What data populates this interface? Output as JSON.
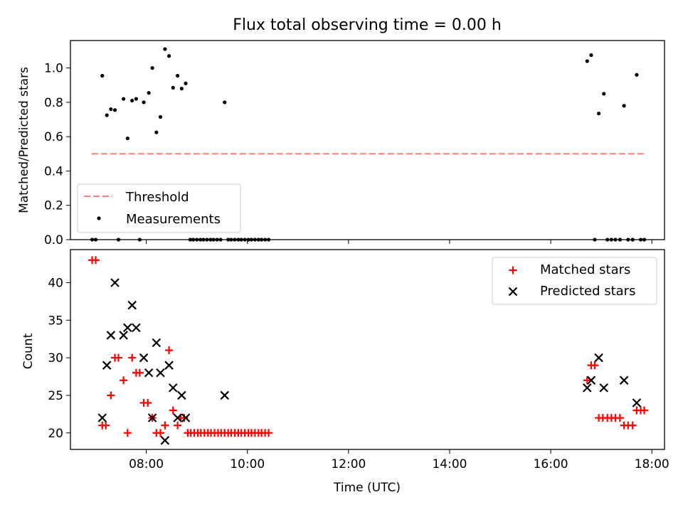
{
  "title": "Flux total observing time = 0.00 h",
  "colors": {
    "threshold": "#ff7f7f",
    "measurement": "#000000",
    "matched": "#ff0000",
    "predicted": "#000000"
  },
  "chart_data": [
    {
      "type": "scatter",
      "ylabel": "Matched/Predicted stars",
      "xlim": [
        6.5,
        18.25
      ],
      "ylim": [
        0,
        1.16
      ],
      "yticks": [
        "0.0",
        "0.2",
        "0.4",
        "0.6",
        "0.8",
        "1.0"
      ],
      "ytick_values": [
        0,
        0.2,
        0.4,
        0.6,
        0.8,
        1.0
      ],
      "grid": false,
      "legend_position": "lower-left",
      "threshold": {
        "name": "Threshold",
        "y": 0.5,
        "x_range": [
          6.92,
          17.87
        ]
      },
      "series": [
        {
          "name": "Measurements",
          "points": [
            [
              6.93,
              0
            ],
            [
              7.0,
              0
            ],
            [
              7.13,
              0.955
            ],
            [
              7.22,
              0.725
            ],
            [
              7.3,
              0.76
            ],
            [
              7.38,
              0.755
            ],
            [
              7.45,
              0
            ],
            [
              7.55,
              0.82
            ],
            [
              7.63,
              0.59
            ],
            [
              7.72,
              0.81
            ],
            [
              7.8,
              0.82
            ],
            [
              7.87,
              0
            ],
            [
              7.95,
              0.8
            ],
            [
              8.05,
              0.855
            ],
            [
              8.12,
              1.0
            ],
            [
              8.2,
              0.625
            ],
            [
              8.28,
              0.715
            ],
            [
              8.37,
              1.11
            ],
            [
              8.45,
              1.07
            ],
            [
              8.53,
              0.885
            ],
            [
              8.62,
              0.955
            ],
            [
              8.7,
              0.88
            ],
            [
              8.78,
              0.91
            ],
            [
              8.87,
              0
            ],
            [
              8.93,
              0
            ],
            [
              9.0,
              0
            ],
            [
              9.07,
              0
            ],
            [
              9.13,
              0
            ],
            [
              9.2,
              0
            ],
            [
              9.27,
              0
            ],
            [
              9.33,
              0
            ],
            [
              9.4,
              0
            ],
            [
              9.47,
              0
            ],
            [
              9.55,
              0.8
            ],
            [
              9.62,
              0
            ],
            [
              9.68,
              0
            ],
            [
              9.75,
              0
            ],
            [
              9.82,
              0
            ],
            [
              9.88,
              0
            ],
            [
              9.95,
              0
            ],
            [
              10.02,
              0
            ],
            [
              10.08,
              0
            ],
            [
              10.15,
              0
            ],
            [
              10.22,
              0
            ],
            [
              10.28,
              0
            ],
            [
              10.35,
              0
            ],
            [
              10.42,
              0
            ],
            [
              16.72,
              1.04
            ],
            [
              16.8,
              1.075
            ],
            [
              16.87,
              0
            ],
            [
              16.95,
              0.735
            ],
            [
              17.05,
              0.85
            ],
            [
              17.12,
              0
            ],
            [
              17.2,
              0
            ],
            [
              17.28,
              0
            ],
            [
              17.37,
              0
            ],
            [
              17.45,
              0.78
            ],
            [
              17.53,
              0
            ],
            [
              17.62,
              0
            ],
            [
              17.7,
              0.96
            ],
            [
              17.78,
              0
            ],
            [
              17.85,
              0
            ]
          ]
        }
      ]
    },
    {
      "type": "scatter",
      "ylabel": "Count",
      "xlabel": "Time (UTC)",
      "xlim": [
        6.5,
        18.25
      ],
      "ylim": [
        17.8,
        44.4
      ],
      "xtick_values": [
        8,
        10,
        12,
        14,
        16,
        18
      ],
      "xticks": [
        "08:00",
        "10:00",
        "12:00",
        "14:00",
        "16:00",
        "18:00"
      ],
      "yticks": [
        "20",
        "25",
        "30",
        "35",
        "40"
      ],
      "ytick_values": [
        20,
        25,
        30,
        35,
        40
      ],
      "grid": false,
      "legend_position": "upper-right",
      "series": [
        {
          "name": "Matched stars",
          "marker": "plus",
          "points": [
            [
              6.93,
              43
            ],
            [
              7.0,
              43
            ],
            [
              7.13,
              21
            ],
            [
              7.2,
              21
            ],
            [
              7.3,
              25
            ],
            [
              7.38,
              30
            ],
            [
              7.45,
              30
            ],
            [
              7.55,
              27
            ],
            [
              7.63,
              20
            ],
            [
              7.72,
              30
            ],
            [
              7.8,
              28
            ],
            [
              7.87,
              28
            ],
            [
              7.95,
              24
            ],
            [
              8.03,
              24
            ],
            [
              8.12,
              22
            ],
            [
              8.2,
              20
            ],
            [
              8.28,
              20
            ],
            [
              8.37,
              21
            ],
            [
              8.45,
              31
            ],
            [
              8.53,
              23
            ],
            [
              8.62,
              21
            ],
            [
              8.68,
              22
            ],
            [
              8.75,
              22
            ],
            [
              8.82,
              20
            ],
            [
              8.88,
              20
            ],
            [
              8.95,
              20
            ],
            [
              9.02,
              20
            ],
            [
              9.08,
              20
            ],
            [
              9.15,
              20
            ],
            [
              9.22,
              20
            ],
            [
              9.28,
              20
            ],
            [
              9.35,
              20
            ],
            [
              9.42,
              20
            ],
            [
              9.48,
              20
            ],
            [
              9.55,
              20
            ],
            [
              9.62,
              20
            ],
            [
              9.68,
              20
            ],
            [
              9.75,
              20
            ],
            [
              9.82,
              20
            ],
            [
              9.88,
              20
            ],
            [
              9.95,
              20
            ],
            [
              10.02,
              20
            ],
            [
              10.08,
              20
            ],
            [
              10.15,
              20
            ],
            [
              10.22,
              20
            ],
            [
              10.28,
              20
            ],
            [
              10.35,
              20
            ],
            [
              10.42,
              20
            ],
            [
              16.72,
              27
            ],
            [
              16.8,
              29
            ],
            [
              16.87,
              29
            ],
            [
              16.95,
              22
            ],
            [
              17.03,
              22
            ],
            [
              17.12,
              22
            ],
            [
              17.2,
              22
            ],
            [
              17.28,
              22
            ],
            [
              17.37,
              22
            ],
            [
              17.45,
              21
            ],
            [
              17.53,
              21
            ],
            [
              17.62,
              21
            ],
            [
              17.7,
              23
            ],
            [
              17.78,
              23
            ],
            [
              17.85,
              23
            ]
          ]
        },
        {
          "name": "Predicted stars",
          "marker": "x",
          "points": [
            [
              7.13,
              22
            ],
            [
              7.22,
              29
            ],
            [
              7.3,
              33
            ],
            [
              7.38,
              40
            ],
            [
              7.55,
              33
            ],
            [
              7.63,
              34
            ],
            [
              7.72,
              37
            ],
            [
              7.8,
              34
            ],
            [
              7.95,
              30
            ],
            [
              8.05,
              28
            ],
            [
              8.12,
              22
            ],
            [
              8.2,
              32
            ],
            [
              8.28,
              28
            ],
            [
              8.37,
              19
            ],
            [
              8.45,
              29
            ],
            [
              8.53,
              26
            ],
            [
              8.62,
              22
            ],
            [
              8.7,
              25
            ],
            [
              8.78,
              22
            ],
            [
              9.55,
              25
            ],
            [
              16.72,
              26
            ],
            [
              16.8,
              27
            ],
            [
              16.95,
              30
            ],
            [
              17.05,
              26
            ],
            [
              17.45,
              27
            ],
            [
              17.7,
              24
            ]
          ]
        }
      ]
    }
  ]
}
